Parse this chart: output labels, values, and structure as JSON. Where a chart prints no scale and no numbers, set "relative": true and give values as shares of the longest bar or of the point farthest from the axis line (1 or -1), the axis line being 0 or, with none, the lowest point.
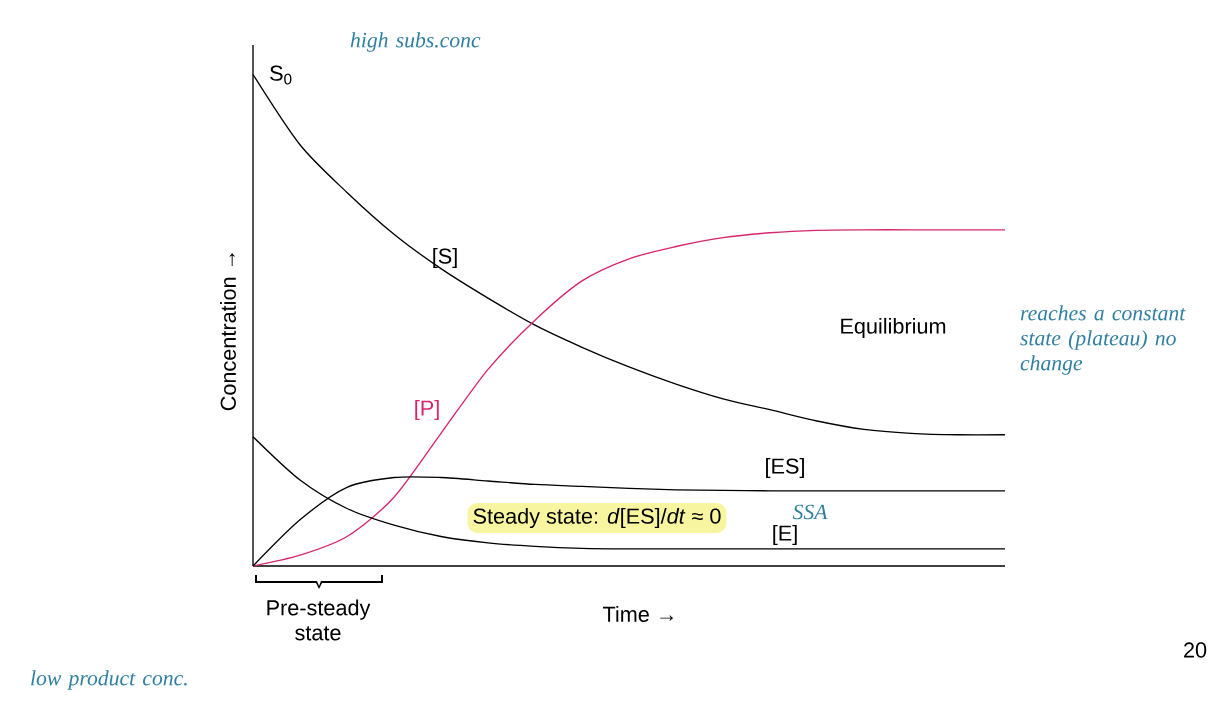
{
  "chart_data": {
    "type": "line",
    "relative": true,
    "marker": "none",
    "line_style": "solid",
    "categories": [
      null,
      null,
      null,
      null,
      null,
      null,
      null,
      null,
      null,
      null,
      null,
      null,
      null,
      null,
      null,
      null,
      null
    ],
    "xlabel": "Time →",
    "ylabel": "Concentration →",
    "series": [
      {
        "name": "[S]",
        "color": "#000000",
        "values": [
          1.0,
          0.857,
          0.76,
          0.675,
          0.605,
          0.545,
          0.49,
          0.445,
          0.405,
          0.37,
          0.34,
          0.318,
          0.295,
          0.278,
          0.27,
          0.267,
          0.267
        ]
      },
      {
        "name": "[P]",
        "color": "#d6246e",
        "values": [
          0,
          0.022,
          0.06,
          0.14,
          0.27,
          0.4,
          0.5,
          0.58,
          0.625,
          0.65,
          0.668,
          0.678,
          0.683,
          0.684,
          0.684,
          0.684,
          0.684
        ]
      },
      {
        "name": "[ES]",
        "color": "#000000",
        "values": [
          0,
          0.094,
          0.16,
          0.18,
          0.18,
          0.173,
          0.166,
          0.162,
          0.158,
          0.155,
          0.154,
          0.153,
          0.153,
          0.153,
          0.153,
          0.153,
          0.153
        ]
      },
      {
        "name": "[E]",
        "color": "#000000",
        "values": [
          0.263,
          0.175,
          0.117,
          0.083,
          0.06,
          0.047,
          0.04,
          0.036,
          0.035,
          0.035,
          0.035,
          0.035,
          0.035,
          0.035,
          0.035,
          0.035,
          0.035
        ]
      }
    ],
    "annotations": [
      "S$_{0}$",
      "Equilibrium",
      "Steady state: *d*[ES]/*dt* ≈ 0",
      "Pre-steady state",
      "high subs.conc",
      "reaches a constant state (plateau) no change",
      "SSA",
      "low product conc.",
      "20"
    ]
  }
}
